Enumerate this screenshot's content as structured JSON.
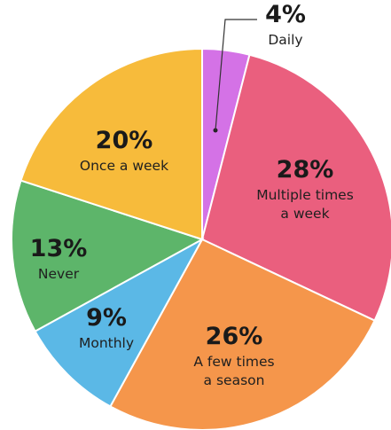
{
  "chart_data": {
    "type": "pie",
    "start_angle_deg": 0,
    "direction": "clockwise",
    "slices": [
      {
        "label": "Daily",
        "value": 4,
        "value_label": "4%",
        "color": "#d472e6",
        "label_lines": [
          "Daily"
        ]
      },
      {
        "label": "Multiple times a week",
        "value": 28,
        "value_label": "28%",
        "color": "#ea5f7e",
        "label_lines": [
          "Multiple times",
          "a week"
        ]
      },
      {
        "label": "A few times a season",
        "value": 26,
        "value_label": "26%",
        "color": "#f5964b",
        "label_lines": [
          "A few times",
          "a season"
        ]
      },
      {
        "label": "Monthly",
        "value": 9,
        "value_label": "9%",
        "color": "#5bb8e6",
        "label_lines": [
          "Monthly"
        ]
      },
      {
        "label": "Never",
        "value": 13,
        "value_label": "13%",
        "color": "#5db56a",
        "label_lines": [
          "Never"
        ]
      },
      {
        "label": "Once a week",
        "value": 20,
        "value_label": "20%",
        "color": "#f7bb3b",
        "label_lines": [
          "Once a week"
        ]
      }
    ]
  }
}
